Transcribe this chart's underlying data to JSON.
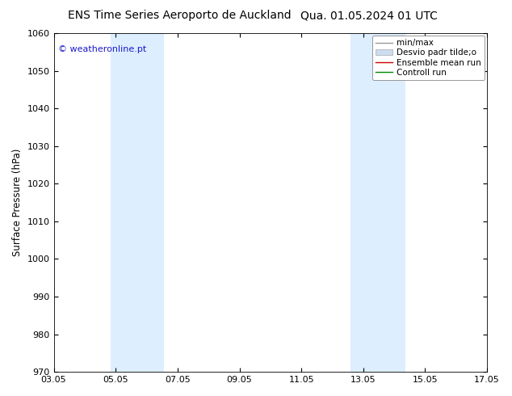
{
  "title_left": "ENS Time Series Aeroporto de Auckland",
  "title_right": "Qua. 01.05.2024 01 UTC",
  "ylabel": "Surface Pressure (hPa)",
  "ylim": [
    970,
    1060
  ],
  "yticks": [
    970,
    980,
    990,
    1000,
    1010,
    1020,
    1030,
    1040,
    1050,
    1060
  ],
  "xlim": [
    1.0,
    15.0
  ],
  "xtick_positions": [
    1,
    3,
    5,
    7,
    9,
    11,
    13,
    15
  ],
  "xtick_labels": [
    "03.05",
    "05.05",
    "07.05",
    "09.05",
    "11.05",
    "13.05",
    "15.05",
    "17.05"
  ],
  "shaded_bands": [
    {
      "xmin": 2.85,
      "xmax": 4.55
    },
    {
      "xmin": 10.6,
      "xmax": 12.35
    }
  ],
  "band_color": "#ddeeff",
  "background_color": "#ffffff",
  "fig_background_color": "#ffffff",
  "watermark": "© weatheronline.pt",
  "watermark_color": "#1a1acc",
  "watermark_fontsize": 8,
  "legend_items": [
    {
      "label": "min/max",
      "color": "#999999",
      "lw": 1.0,
      "type": "line"
    },
    {
      "label": "Desvio padr tilde;o",
      "color": "#ccddee",
      "lw": 5,
      "type": "patch"
    },
    {
      "label": "Ensemble mean run",
      "color": "#cc0000",
      "lw": 1.0,
      "type": "line"
    },
    {
      "label": "Controll run",
      "color": "#008800",
      "lw": 1.0,
      "type": "line"
    }
  ],
  "title_fontsize": 10,
  "ylabel_fontsize": 8.5,
  "tick_fontsize": 8,
  "legend_fontsize": 7.5,
  "figsize": [
    6.34,
    4.9
  ],
  "dpi": 100
}
